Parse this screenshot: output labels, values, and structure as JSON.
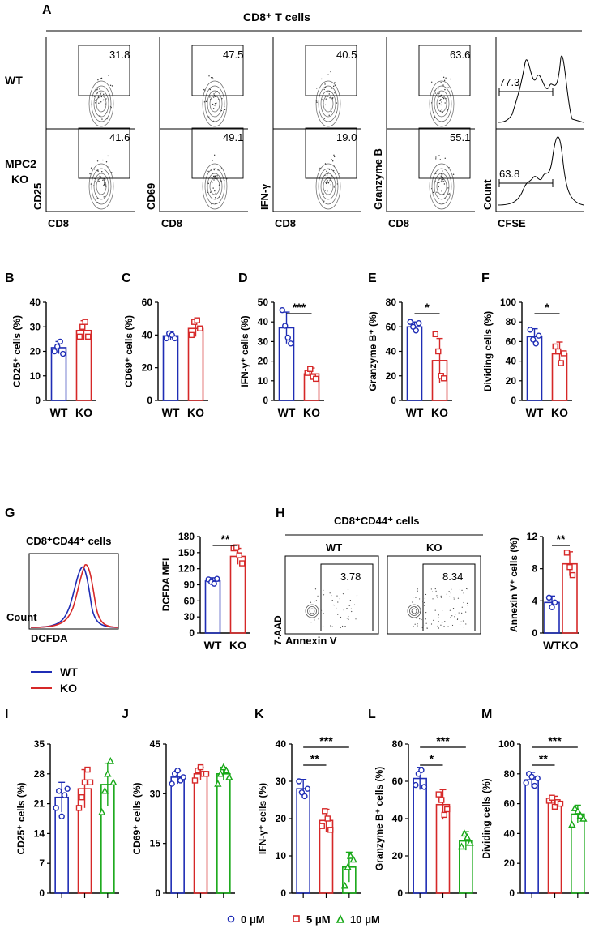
{
  "panel_letters": {
    "A": "A",
    "B": "B",
    "C": "C",
    "D": "D",
    "E": "E",
    "F": "F",
    "G": "G",
    "H": "H",
    "I": "I",
    "J": "J",
    "K": "K",
    "L": "L",
    "M": "M"
  },
  "colors": {
    "wt": "#1f2db5",
    "ko": "#d62828",
    "g10": "#18a818"
  },
  "panel_a": {
    "title": "CD8⁺ T cells",
    "row_labels": [
      "WT",
      "MPC2",
      "KO"
    ],
    "x_label": "CD8",
    "hist_x_label": "CFSE",
    "hist_y_label": "Count",
    "y_labels": [
      "CD25",
      "CD69",
      "IFN-γ",
      "Granzyme B"
    ],
    "wt_values": [
      "31.8",
      "47.5",
      "40.5",
      "63.6"
    ],
    "ko_values": [
      "41.6",
      "49.1",
      "19.0",
      "55.1"
    ],
    "wt_hist_value": "77.3",
    "ko_hist_value": "63.8"
  },
  "panel_g": {
    "title": "CD8⁺CD44⁺ cells",
    "x_label": "DCFDA",
    "y_label": "Count",
    "legend": [
      "WT",
      "KO"
    ]
  },
  "panel_h": {
    "title": "CD8⁺CD44⁺ cells",
    "cols": [
      "WT",
      "KO"
    ],
    "values": [
      "3.78",
      "8.34"
    ],
    "x_label": "Annexin V",
    "y_label": "7-AAD"
  },
  "bottom_legend": [
    "0 μM",
    "5 μM",
    "10 μM"
  ],
  "chart_data": [
    {
      "id": "B",
      "type": "bar",
      "categories": [
        "WT",
        "KO"
      ],
      "values": [
        21.5,
        28.5
      ],
      "errors": [
        2.5,
        4.0
      ],
      "points": [
        [
          20,
          22,
          24,
          19
        ],
        [
          26,
          30,
          32,
          26
        ]
      ],
      "ylabel": "CD25⁺ cells (%)",
      "ylim": [
        0,
        40
      ],
      "yticks": [
        0,
        10,
        20,
        30,
        40
      ],
      "sig": ""
    },
    {
      "id": "C",
      "type": "bar",
      "categories": [
        "WT",
        "KO"
      ],
      "values": [
        39.5,
        44
      ],
      "errors": [
        2.5,
        5
      ],
      "points": [
        [
          38,
          41,
          40,
          38
        ],
        [
          40,
          48,
          49,
          44
        ]
      ],
      "ylabel": "CD69⁺ cells (%)",
      "ylim": [
        0,
        60
      ],
      "yticks": [
        0,
        20,
        40,
        60
      ],
      "sig": ""
    },
    {
      "id": "D",
      "type": "bar",
      "categories": [
        "WT",
        "KO"
      ],
      "values": [
        37,
        13.5
      ],
      "errors": [
        8,
        3
      ],
      "points": [
        [
          46,
          38,
          32,
          29
        ],
        [
          14,
          16,
          12,
          11
        ]
      ],
      "ylabel": "IFN-γ⁺ cells (%)",
      "ylim": [
        0,
        50
      ],
      "yticks": [
        0,
        10,
        20,
        30,
        40,
        50
      ],
      "sig": "***"
    },
    {
      "id": "E",
      "type": "bar",
      "categories": [
        "WT",
        "KO"
      ],
      "values": [
        60,
        32.5
      ],
      "errors": [
        4,
        18
      ],
      "points": [
        [
          64,
          60,
          57,
          63
        ],
        [
          54,
          40,
          20,
          18
        ]
      ],
      "ylabel": "Granzyme B⁺ (%)",
      "ylim": [
        0,
        80
      ],
      "yticks": [
        0,
        20,
        40,
        60,
        80
      ],
      "sig": "*"
    },
    {
      "id": "F",
      "type": "bar",
      "categories": [
        "WT",
        "KO"
      ],
      "values": [
        65,
        47.5
      ],
      "errors": [
        8,
        12
      ],
      "points": [
        [
          72,
          62,
          58,
          66
        ],
        [
          55,
          50,
          38,
          48
        ]
      ],
      "ylabel": "Dividing cells (%)",
      "ylim": [
        0,
        100
      ],
      "yticks": [
        0,
        20,
        40,
        60,
        80,
        100
      ],
      "sig": "*"
    },
    {
      "id": "G",
      "type": "bar",
      "categories": [
        "WT",
        "KO"
      ],
      "values": [
        97,
        143
      ],
      "errors": [
        6,
        15
      ],
      "points": [
        [
          100,
          95,
          92,
          101
        ],
        [
          158,
          160,
          145,
          130
        ]
      ],
      "ylabel": "DCFDA MFI",
      "ylim": [
        0,
        180
      ],
      "yticks": [
        0,
        30,
        60,
        90,
        120,
        150,
        180
      ],
      "sig": "**"
    },
    {
      "id": "H",
      "type": "bar",
      "categories": [
        "WT",
        "KO"
      ],
      "values": [
        3.8,
        8.6
      ],
      "errors": [
        0.8,
        1.5
      ],
      "points": [
        [
          4.4,
          3.2,
          3.8
        ],
        [
          10,
          8.2,
          7.2
        ]
      ],
      "ylabel": "Annexin V⁺ cells (%)",
      "ylim": [
        0,
        12
      ],
      "yticks": [
        0,
        4,
        8,
        12
      ],
      "sig": "**"
    },
    {
      "id": "I",
      "type": "bar",
      "categories": [
        "0 μM",
        "5 μM",
        "10 μM"
      ],
      "values": [
        22.5,
        24.5,
        25.5
      ],
      "errors": [
        3.5,
        4.5,
        5
      ],
      "points": [
        [
          20,
          24,
          18,
          23,
          24.5
        ],
        [
          20,
          22.5,
          26,
          29,
          26
        ],
        [
          19,
          24,
          28,
          31,
          26
        ]
      ],
      "ylabel": "CD25⁺ cells (%)",
      "ylim": [
        0,
        35
      ],
      "yticks": [
        0,
        7,
        14,
        21,
        28,
        35
      ],
      "sig": ""
    },
    {
      "id": "J",
      "type": "bar",
      "categories": [
        "0 μM",
        "5 μM",
        "10 μM"
      ],
      "values": [
        35,
        36,
        36
      ],
      "errors": [
        2,
        2,
        2
      ],
      "points": [
        [
          33,
          36,
          37,
          34,
          35
        ],
        [
          34,
          37,
          38,
          36,
          36
        ],
        [
          33,
          36,
          38,
          37,
          35
        ]
      ],
      "ylabel": "CD69⁺ cells (%)",
      "ylim": [
        0,
        45
      ],
      "yticks": [
        0,
        15,
        30,
        45
      ],
      "sig": ""
    },
    {
      "id": "K",
      "type": "bar",
      "categories": [
        "0 μM",
        "5 μM",
        "10 μM"
      ],
      "values": [
        28,
        19.5,
        7
      ],
      "errors": [
        2.5,
        3,
        4
      ],
      "points": [
        [
          30,
          27,
          26,
          28
        ],
        [
          18,
          22,
          20,
          17
        ],
        [
          2,
          7,
          10,
          9
        ]
      ],
      "ylabel": "IFN-γ⁺ cells (%)",
      "ylim": [
        0,
        40
      ],
      "yticks": [
        0,
        10,
        20,
        30,
        40
      ],
      "sig": "**|***"
    },
    {
      "id": "L",
      "type": "bar",
      "categories": [
        "0 μM",
        "5 μM",
        "10 μM"
      ],
      "values": [
        61.5,
        47.5,
        28
      ],
      "errors": [
        6,
        8,
        5
      ],
      "points": [
        [
          58,
          64,
          66,
          57
        ],
        [
          53,
          50,
          42,
          45
        ],
        [
          25,
          32,
          30,
          27
        ]
      ],
      "ylabel": "Granzyme B⁺ cells (%)",
      "ylim": [
        0,
        80
      ],
      "yticks": [
        0,
        20,
        40,
        60,
        80
      ],
      "sig": "*|***"
    },
    {
      "id": "M",
      "type": "bar",
      "categories": [
        "0 μM",
        "5 μM",
        "10 μM"
      ],
      "values": [
        76,
        61,
        53
      ],
      "errors": [
        5,
        4,
        6
      ],
      "points": [
        [
          74,
          80,
          78,
          72,
          77
        ],
        [
          62,
          64,
          58,
          61,
          60
        ],
        [
          46,
          57,
          55,
          52,
          50
        ]
      ],
      "ylabel": "Dividing cells (%)",
      "ylim": [
        0,
        100
      ],
      "yticks": [
        0,
        20,
        40,
        60,
        80,
        100
      ],
      "sig": "**|***"
    }
  ]
}
